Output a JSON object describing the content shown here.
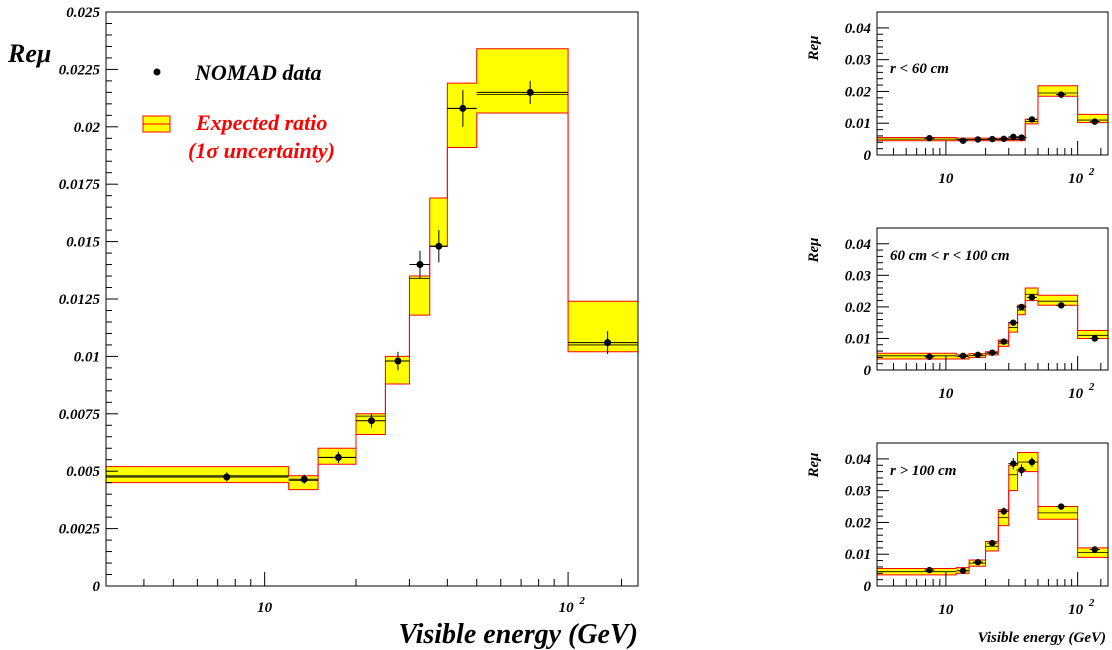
{
  "colors": {
    "band_fill": "#ffff00",
    "band_edge": "#ff0000",
    "expected_line": "#000000",
    "data_marker": "#000000",
    "legend_expected_text": "#ff0000",
    "legend_data_text": "#000000"
  },
  "chart_data": [
    {
      "type": "line",
      "xscale": "log",
      "xlim": [
        3,
        170
      ],
      "ylim": [
        0,
        0.025
      ],
      "xlabel": "Visible energy (GeV)",
      "ylabel": "Reμ",
      "x_tick_labels": [
        "10",
        "10²"
      ],
      "y_tick_labels": [
        "0",
        "0.0025",
        "0.005",
        "0.0075",
        "0.01",
        "0.0125",
        "0.015",
        "0.0175",
        "0.02",
        "0.0225",
        "0.025"
      ],
      "y_ticks": [
        0,
        0.0025,
        0.005,
        0.0075,
        0.01,
        0.0125,
        0.015,
        0.0175,
        0.02,
        0.0225,
        0.025
      ],
      "legend": {
        "data_label": "NOMAD data",
        "expected_label": "Expected ratio",
        "expected_sublabel": "(1σ uncertainty)",
        "placement": "top-left"
      },
      "series": [
        {
          "name": "Expected ratio",
          "bins": [
            {
              "x0": 3,
              "x1": 12,
              "low": 0.0045,
              "high": 0.0052,
              "central": 0.0048
            },
            {
              "x0": 12,
              "x1": 15,
              "low": 0.0042,
              "high": 0.0048,
              "central": 0.0046
            },
            {
              "x0": 15,
              "x1": 20,
              "low": 0.0053,
              "high": 0.006,
              "central": 0.0056
            },
            {
              "x0": 20,
              "x1": 25,
              "low": 0.0066,
              "high": 0.0075,
              "central": 0.0074
            },
            {
              "x0": 25,
              "x1": 30,
              "low": 0.0088,
              "high": 0.01,
              "central": 0.0098
            },
            {
              "x0": 30,
              "x1": 35,
              "low": 0.0118,
              "high": 0.0135,
              "central": 0.0134
            },
            {
              "x0": 35,
              "x1": 40,
              "low": 0.0148,
              "high": 0.0169,
              "central": 0.0148
            },
            {
              "x0": 40,
              "x1": 50,
              "low": 0.0191,
              "high": 0.0219,
              "central": 0.0208
            },
            {
              "x0": 50,
              "x1": 100,
              "low": 0.0206,
              "high": 0.0234,
              "central": 0.0214
            },
            {
              "x0": 100,
              "x1": 170,
              "low": 0.0102,
              "high": 0.0124,
              "central": 0.0105
            }
          ]
        },
        {
          "name": "NOMAD data",
          "points": [
            {
              "x": 7.5,
              "y": 0.00475,
              "err": 0.0002,
              "xerr": [
                3,
                12
              ]
            },
            {
              "x": 13.5,
              "y": 0.00465,
              "err": 0.0002,
              "xerr": [
                12,
                15
              ]
            },
            {
              "x": 17.5,
              "y": 0.0056,
              "err": 0.00025,
              "xerr": [
                15,
                20
              ]
            },
            {
              "x": 22.5,
              "y": 0.0072,
              "err": 0.0003,
              "xerr": [
                20,
                25
              ]
            },
            {
              "x": 27.5,
              "y": 0.0098,
              "err": 0.0004,
              "xerr": [
                25,
                30
              ]
            },
            {
              "x": 32.5,
              "y": 0.014,
              "err": 0.0006,
              "xerr": [
                30,
                35
              ]
            },
            {
              "x": 37.5,
              "y": 0.0148,
              "err": 0.0007,
              "xerr": [
                35,
                40
              ]
            },
            {
              "x": 45,
              "y": 0.0208,
              "err": 0.0008,
              "xerr": [
                40,
                50
              ]
            },
            {
              "x": 75,
              "y": 0.0215,
              "err": 0.0005,
              "xerr": [
                50,
                100
              ]
            },
            {
              "x": 135,
              "y": 0.0106,
              "err": 0.0005,
              "xerr": [
                100,
                170
              ]
            }
          ]
        }
      ]
    },
    {
      "type": "line",
      "xscale": "log",
      "xlim": [
        3,
        170
      ],
      "ylim": [
        0,
        0.045
      ],
      "ylabel": "Reμ",
      "annotation": "r < 60 cm",
      "x_tick_labels": [
        "10",
        "10²"
      ],
      "y_tick_labels": [
        "0",
        "0.01",
        "0.02",
        "0.03",
        "0.04"
      ],
      "y_ticks": [
        0,
        0.01,
        0.02,
        0.03,
        0.04
      ],
      "series": [
        {
          "name": "Expected ratio",
          "bins": [
            {
              "x0": 3,
              "x1": 12,
              "low": 0.0045,
              "high": 0.0055,
              "central": 0.005
            },
            {
              "x0": 12,
              "x1": 40,
              "low": 0.0045,
              "high": 0.0053,
              "central": 0.0049
            },
            {
              "x0": 40,
              "x1": 50,
              "low": 0.0098,
              "high": 0.0113,
              "central": 0.0105
            },
            {
              "x0": 50,
              "x1": 100,
              "low": 0.0185,
              "high": 0.0218,
              "central": 0.0195
            },
            {
              "x0": 100,
              "x1": 170,
              "low": 0.0102,
              "high": 0.0128,
              "central": 0.011
            }
          ]
        },
        {
          "name": "NOMAD data",
          "points": [
            {
              "x": 7.5,
              "y": 0.0053,
              "err": 0.0004
            },
            {
              "x": 13.5,
              "y": 0.0045,
              "err": 0.0004
            },
            {
              "x": 17.5,
              "y": 0.0049,
              "err": 0.0004
            },
            {
              "x": 22.5,
              "y": 0.005,
              "err": 0.0004
            },
            {
              "x": 27.5,
              "y": 0.0051,
              "err": 0.0004
            },
            {
              "x": 32.5,
              "y": 0.0057,
              "err": 0.0005
            },
            {
              "x": 37.5,
              "y": 0.0055,
              "err": 0.0005
            },
            {
              "x": 45,
              "y": 0.0112,
              "err": 0.0007
            },
            {
              "x": 75,
              "y": 0.019,
              "err": 0.0007
            },
            {
              "x": 135,
              "y": 0.0105,
              "err": 0.0007
            }
          ]
        }
      ]
    },
    {
      "type": "line",
      "xscale": "log",
      "xlim": [
        3,
        170
      ],
      "ylim": [
        0,
        0.045
      ],
      "ylabel": "Reμ",
      "annotation": "60 cm < r < 100 cm",
      "x_tick_labels": [
        "10",
        "10²"
      ],
      "y_tick_labels": [
        "0",
        "0.01",
        "0.02",
        "0.03",
        "0.04"
      ],
      "y_ticks": [
        0,
        0.01,
        0.02,
        0.03,
        0.04
      ],
      "series": [
        {
          "name": "Expected ratio",
          "bins": [
            {
              "x0": 3,
              "x1": 12,
              "low": 0.0035,
              "high": 0.0053,
              "central": 0.0045
            },
            {
              "x0": 12,
              "x1": 15,
              "low": 0.0035,
              "high": 0.0048,
              "central": 0.0042
            },
            {
              "x0": 15,
              "x1": 20,
              "low": 0.004,
              "high": 0.0052,
              "central": 0.0046
            },
            {
              "x0": 20,
              "x1": 25,
              "low": 0.0048,
              "high": 0.0058,
              "central": 0.0053
            },
            {
              "x0": 25,
              "x1": 30,
              "low": 0.0075,
              "high": 0.0095,
              "central": 0.0085
            },
            {
              "x0": 30,
              "x1": 35,
              "low": 0.012,
              "high": 0.015,
              "central": 0.0135
            },
            {
              "x0": 35,
              "x1": 40,
              "low": 0.0175,
              "high": 0.0205,
              "central": 0.019
            },
            {
              "x0": 40,
              "x1": 50,
              "low": 0.022,
              "high": 0.026,
              "central": 0.024
            },
            {
              "x0": 50,
              "x1": 100,
              "low": 0.0205,
              "high": 0.0237,
              "central": 0.0218
            },
            {
              "x0": 100,
              "x1": 170,
              "low": 0.01,
              "high": 0.0125,
              "central": 0.011
            }
          ]
        },
        {
          "name": "NOMAD data",
          "points": [
            {
              "x": 7.5,
              "y": 0.0042,
              "err": 0.0004
            },
            {
              "x": 13.5,
              "y": 0.0045,
              "err": 0.0004
            },
            {
              "x": 17.5,
              "y": 0.0048,
              "err": 0.0004
            },
            {
              "x": 22.5,
              "y": 0.0055,
              "err": 0.0005
            },
            {
              "x": 27.5,
              "y": 0.009,
              "err": 0.0006
            },
            {
              "x": 32.5,
              "y": 0.015,
              "err": 0.0008
            },
            {
              "x": 37.5,
              "y": 0.02,
              "err": 0.0009
            },
            {
              "x": 45,
              "y": 0.023,
              "err": 0.001
            },
            {
              "x": 75,
              "y": 0.0205,
              "err": 0.0008
            },
            {
              "x": 135,
              "y": 0.01,
              "err": 0.0007
            }
          ]
        }
      ]
    },
    {
      "type": "line",
      "xscale": "log",
      "xlim": [
        3,
        170
      ],
      "ylim": [
        0,
        0.045
      ],
      "xlabel": "Visible energy (GeV)",
      "ylabel": "Reμ",
      "annotation": "r > 100 cm",
      "x_tick_labels": [
        "10",
        "10²"
      ],
      "y_tick_labels": [
        "0",
        "0.01",
        "0.02",
        "0.03",
        "0.04"
      ],
      "y_ticks": [
        0,
        0.01,
        0.02,
        0.03,
        0.04
      ],
      "series": [
        {
          "name": "Expected ratio",
          "bins": [
            {
              "x0": 3,
              "x1": 12,
              "low": 0.0035,
              "high": 0.0055,
              "central": 0.0045
            },
            {
              "x0": 12,
              "x1": 15,
              "low": 0.004,
              "high": 0.0058,
              "central": 0.0048
            },
            {
              "x0": 15,
              "x1": 20,
              "low": 0.0062,
              "high": 0.0082,
              "central": 0.0072
            },
            {
              "x0": 20,
              "x1": 25,
              "low": 0.011,
              "high": 0.014,
              "central": 0.0125
            },
            {
              "x0": 25,
              "x1": 30,
              "low": 0.019,
              "high": 0.024,
              "central": 0.0215
            },
            {
              "x0": 30,
              "x1": 35,
              "low": 0.03,
              "high": 0.038,
              "central": 0.035
            },
            {
              "x0": 35,
              "x1": 40,
              "low": 0.036,
              "high": 0.042,
              "central": 0.039
            },
            {
              "x0": 40,
              "x1": 50,
              "low": 0.036,
              "high": 0.042,
              "central": 0.039
            },
            {
              "x0": 50,
              "x1": 100,
              "low": 0.021,
              "high": 0.025,
              "central": 0.023
            },
            {
              "x0": 100,
              "x1": 170,
              "low": 0.009,
              "high": 0.012,
              "central": 0.0105
            }
          ]
        },
        {
          "name": "NOMAD data",
          "points": [
            {
              "x": 7.5,
              "y": 0.005,
              "err": 0.0004
            },
            {
              "x": 13.5,
              "y": 0.0048,
              "err": 0.0004
            },
            {
              "x": 17.5,
              "y": 0.0075,
              "err": 0.0006
            },
            {
              "x": 22.5,
              "y": 0.0135,
              "err": 0.0008
            },
            {
              "x": 27.5,
              "y": 0.0235,
              "err": 0.0012
            },
            {
              "x": 32.5,
              "y": 0.0385,
              "err": 0.0018
            },
            {
              "x": 37.5,
              "y": 0.0365,
              "err": 0.0018
            },
            {
              "x": 45,
              "y": 0.039,
              "err": 0.0015
            },
            {
              "x": 75,
              "y": 0.025,
              "err": 0.0008
            },
            {
              "x": 135,
              "y": 0.0115,
              "err": 0.0007
            }
          ]
        }
      ]
    }
  ]
}
